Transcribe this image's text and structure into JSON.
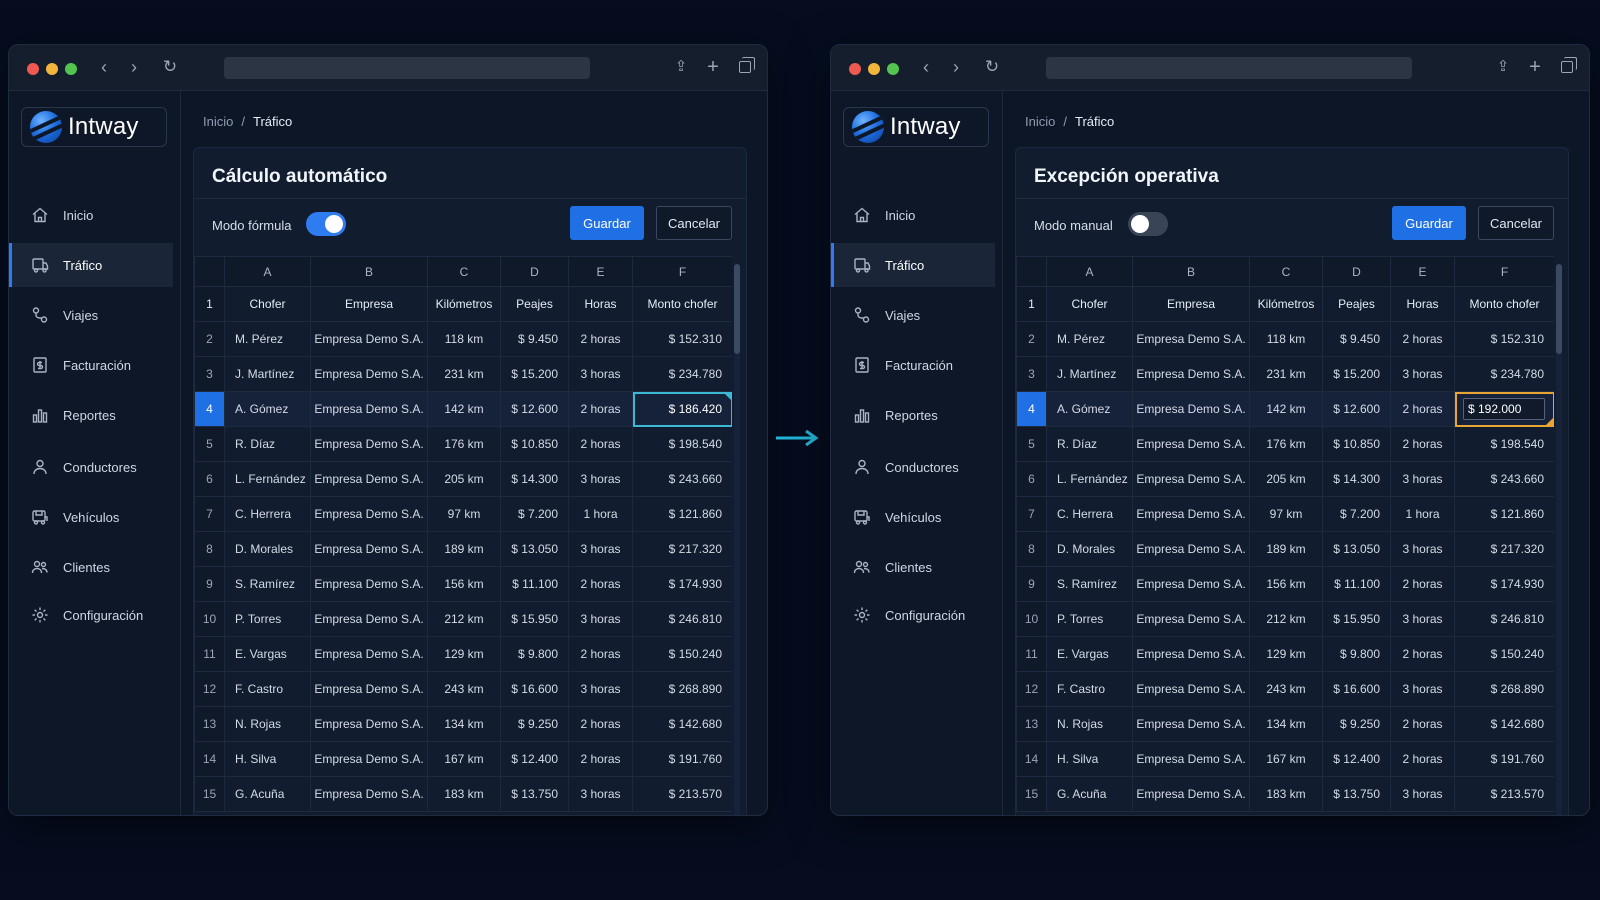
{
  "brand": "Intway",
  "breadcrumb": {
    "home": "Inicio",
    "separator": "/",
    "current": "Tráfico"
  },
  "nav": [
    {
      "label": "Inicio",
      "icon": "home-icon"
    },
    {
      "label": "Tráfico",
      "icon": "truck-icon",
      "active": true
    },
    {
      "label": "Viajes",
      "icon": "route-icon"
    },
    {
      "label": "Facturación",
      "icon": "invoice-icon"
    },
    {
      "label": "Reportes",
      "icon": "bar-chart-icon"
    },
    {
      "label": "Conductores",
      "icon": "user-icon"
    },
    {
      "label": "Vehículos",
      "icon": "vehicle-icon"
    },
    {
      "label": "Clientes",
      "icon": "users-icon"
    },
    {
      "label": "Configuración",
      "icon": "gear-icon"
    }
  ],
  "columns": [
    "A",
    "B",
    "C",
    "D",
    "E",
    "F"
  ],
  "header_row": [
    "Chofer",
    "Empresa",
    "Kilómetros",
    "Peajes",
    "Horas",
    "Monto chofer"
  ],
  "rows": [
    [
      "M. Pérez",
      "Empresa Demo S.A.",
      "118 km",
      "$ 9.450",
      "2 horas",
      "$ 152.310"
    ],
    [
      "J. Martínez",
      "Empresa Demo S.A.",
      "231 km",
      "$ 15.200",
      "3 horas",
      "$ 234.780"
    ],
    [
      "A. Gómez",
      "Empresa Demo S.A.",
      "142 km",
      "$ 12.600",
      "2 horas",
      "$ 186.420"
    ],
    [
      "R. Díaz",
      "Empresa Demo S.A.",
      "176 km",
      "$ 10.850",
      "2 horas",
      "$ 198.540"
    ],
    [
      "L. Fernández",
      "Empresa Demo S.A.",
      "205 km",
      "$ 14.300",
      "3 horas",
      "$ 243.660"
    ],
    [
      "C. Herrera",
      "Empresa Demo S.A.",
      "97 km",
      "$ 7.200",
      "1 hora",
      "$ 121.860"
    ],
    [
      "D. Morales",
      "Empresa Demo S.A.",
      "189 km",
      "$ 13.050",
      "3 horas",
      "$ 217.320"
    ],
    [
      "S. Ramírez",
      "Empresa Demo S.A.",
      "156 km",
      "$ 11.100",
      "2 horas",
      "$ 174.930"
    ],
    [
      "P. Torres",
      "Empresa Demo S.A.",
      "212 km",
      "$ 15.950",
      "3 horas",
      "$ 246.810"
    ],
    [
      "E. Vargas",
      "Empresa Demo S.A.",
      "129 km",
      "$ 9.800",
      "2 horas",
      "$ 150.240"
    ],
    [
      "F. Castro",
      "Empresa Demo S.A.",
      "243 km",
      "$ 16.600",
      "3 horas",
      "$ 268.890"
    ],
    [
      "N. Rojas",
      "Empresa Demo S.A.",
      "134 km",
      "$ 9.250",
      "2 horas",
      "$ 142.680"
    ],
    [
      "H. Silva",
      "Empresa Demo S.A.",
      "167 km",
      "$ 12.400",
      "2 horas",
      "$ 191.760"
    ],
    [
      "G. Acuña",
      "Empresa Demo S.A.",
      "183 km",
      "$ 13.750",
      "3 horas",
      "$ 213.570"
    ]
  ],
  "selected_row": 4,
  "left_panel": {
    "title": "Cálculo automático",
    "mode_label": "Modo fórmula",
    "toggle_on": true,
    "save_label": "Guardar",
    "cancel_label": "Cancelar"
  },
  "right_panel": {
    "title": "Excepción operativa",
    "mode_label": "Modo manual",
    "toggle_on": false,
    "save_label": "Guardar",
    "cancel_label": "Cancelar",
    "edited_value": "$ 192.000"
  },
  "colors": {
    "accent": "#1f6fe5",
    "selection_auto": "#3ab8d6",
    "selection_manual": "#e8a534",
    "arrow": "#22b3d6"
  }
}
